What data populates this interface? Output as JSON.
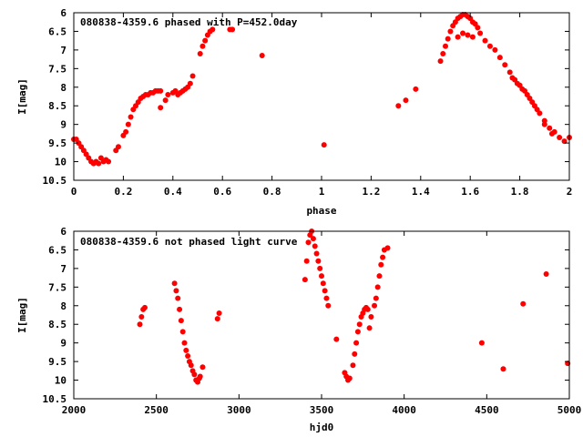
{
  "colors": {
    "points": "#ff0000",
    "axes": "#000000",
    "background": "#ffffff"
  },
  "chart_data": [
    {
      "type": "scatter",
      "title": "080838-4359.6 phased with P=452.0day",
      "xlabel": "phase",
      "ylabel": "I[mag]",
      "xlim": [
        0,
        2
      ],
      "ylim": [
        10.5,
        6
      ],
      "y_inverted": true,
      "grid": false,
      "xticks": [
        "0",
        "0.2",
        "0.4",
        "0.6",
        "0.8",
        "1",
        "1.2",
        "1.4",
        "1.6",
        "1.8",
        "2"
      ],
      "yticks": [
        "6",
        "6.5",
        "7",
        "7.5",
        "8",
        "8.5",
        "9",
        "9.5",
        "10",
        "10.5"
      ],
      "series": [
        {
          "x": [
            0.0,
            0.01,
            0.02,
            0.03,
            0.04,
            0.05,
            0.06,
            0.07,
            0.08,
            0.09,
            0.1,
            0.11,
            0.12,
            0.13,
            0.14,
            0.17,
            0.18,
            0.2,
            0.21,
            0.22,
            0.23,
            0.24,
            0.25,
            0.26,
            0.27,
            0.28,
            0.29,
            0.3,
            0.31,
            0.32,
            0.33,
            0.34,
            0.35,
            0.35,
            0.37,
            0.38,
            0.4,
            0.41,
            0.42,
            0.43,
            0.44,
            0.45,
            0.46,
            0.47,
            0.48,
            0.51,
            0.52,
            0.53,
            0.54,
            0.55,
            0.56,
            0.63,
            0.64,
            0.76,
            1.01,
            1.31,
            1.34,
            1.38,
            1.48,
            1.49,
            1.5,
            1.51,
            1.52,
            1.53,
            1.54,
            1.55,
            1.56,
            1.57,
            1.58,
            1.59,
            1.6,
            1.61,
            1.62,
            1.63,
            1.55,
            1.57,
            1.59,
            1.61,
            1.64,
            1.66,
            1.68,
            1.7,
            1.72,
            1.74,
            1.76,
            1.78,
            1.8,
            1.82,
            1.84,
            1.86,
            1.88,
            1.9,
            1.92,
            1.94,
            1.96,
            1.98,
            2.0,
            1.77,
            1.79,
            1.81,
            1.83,
            1.85,
            1.87,
            1.9,
            1.93
          ],
          "y": [
            9.4,
            9.4,
            9.5,
            9.6,
            9.7,
            9.8,
            9.9,
            10.0,
            10.05,
            10.0,
            10.05,
            9.9,
            10.0,
            9.95,
            10.0,
            9.7,
            9.6,
            9.3,
            9.2,
            9.0,
            8.8,
            8.6,
            8.5,
            8.4,
            8.3,
            8.25,
            8.2,
            8.2,
            8.15,
            8.15,
            8.1,
            8.1,
            8.1,
            8.55,
            8.35,
            8.2,
            8.15,
            8.1,
            8.2,
            8.15,
            8.1,
            8.05,
            8.0,
            7.9,
            7.7,
            7.1,
            6.9,
            6.75,
            6.6,
            6.5,
            6.45,
            6.45,
            6.45,
            7.15,
            9.55,
            8.5,
            8.35,
            8.05,
            7.3,
            7.1,
            6.9,
            6.7,
            6.5,
            6.35,
            6.25,
            6.15,
            6.1,
            6.05,
            6.05,
            6.1,
            6.15,
            6.25,
            6.3,
            6.4,
            6.65,
            6.55,
            6.6,
            6.65,
            6.55,
            6.75,
            6.9,
            7.0,
            7.2,
            7.4,
            7.6,
            7.8,
            7.95,
            8.1,
            8.3,
            8.5,
            8.7,
            8.9,
            9.1,
            9.2,
            9.35,
            9.45,
            9.35,
            7.75,
            7.9,
            8.05,
            8.2,
            8.4,
            8.6,
            9.0,
            9.25
          ]
        }
      ]
    },
    {
      "type": "scatter",
      "title": "080838-4359.6 not phased light curve",
      "xlabel": "hjd0",
      "ylabel": "I[mag]",
      "xlim": [
        2000,
        5000
      ],
      "ylim": [
        10.5,
        6
      ],
      "y_inverted": true,
      "grid": false,
      "xticks": [
        "2000",
        "2500",
        "3000",
        "3500",
        "4000",
        "4500",
        "5000"
      ],
      "yticks": [
        "6",
        "6.5",
        "7",
        "7.5",
        "8",
        "8.5",
        "9",
        "9.5",
        "10",
        "10.5"
      ],
      "series": [
        {
          "x": [
            2400,
            2410,
            2420,
            2430,
            2610,
            2620,
            2630,
            2640,
            2650,
            2660,
            2670,
            2680,
            2690,
            2700,
            2710,
            2720,
            2730,
            2740,
            2750,
            2760,
            2765,
            2780,
            2870,
            2880,
            3400,
            3410,
            3420,
            3430,
            3440,
            3450,
            3460,
            3470,
            3480,
            3490,
            3500,
            3510,
            3520,
            3530,
            3540,
            3590,
            3640,
            3650,
            3660,
            3670,
            3690,
            3700,
            3710,
            3720,
            3730,
            3740,
            3750,
            3760,
            3770,
            3780,
            3790,
            3800,
            3820,
            3830,
            3840,
            3850,
            3860,
            3870,
            3880,
            3900,
            4470,
            4600,
            4720,
            4860,
            4990
          ],
          "y": [
            8.5,
            8.3,
            8.1,
            8.05,
            7.4,
            7.6,
            7.8,
            8.1,
            8.4,
            8.7,
            9.0,
            9.2,
            9.35,
            9.5,
            9.6,
            9.75,
            9.85,
            10.0,
            10.05,
            9.95,
            9.9,
            9.65,
            8.35,
            8.2,
            7.3,
            6.8,
            6.3,
            6.1,
            6.0,
            6.2,
            6.4,
            6.6,
            6.8,
            7.0,
            7.2,
            7.4,
            7.6,
            7.8,
            8.0,
            8.9,
            9.8,
            9.9,
            10.0,
            9.95,
            9.6,
            9.3,
            9.0,
            8.7,
            8.5,
            8.3,
            8.2,
            8.1,
            8.05,
            8.1,
            8.6,
            8.3,
            8.0,
            7.8,
            7.5,
            7.2,
            6.9,
            6.7,
            6.5,
            6.45,
            9.0,
            9.7,
            7.95,
            7.15,
            9.55
          ]
        }
      ]
    }
  ]
}
